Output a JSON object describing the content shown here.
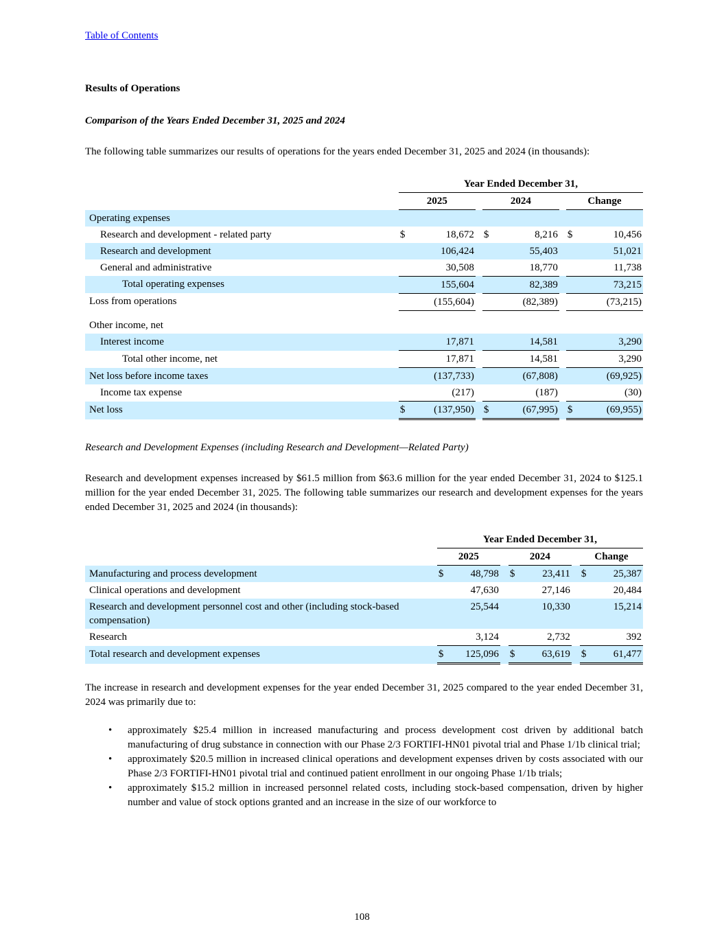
{
  "page": {
    "toc_link": "Table of Contents",
    "page_number": "108"
  },
  "colors": {
    "row_shading": "#cceeff",
    "link": "#0000ee"
  },
  "headings": {
    "results": "Results of Operations",
    "comparison": "Comparison of the Years Ended December 31, 2025 and 2024",
    "rd": "Research and Development Expenses (including Research and Development—Related Party)"
  },
  "paragraphs": {
    "intro": "The following table summarizes our results of operations for the years ended December 31, 2025 and 2024 (in thousands):",
    "rd_summary": "Research and development expenses increased by $61.5 million from $63.6 million for the year ended December 31, 2024 to $125.1 million for the year ended December 31, 2025. The following table summarizes our research and development expenses for the years ended December 31, 2025 and 2024 (in thousands):",
    "increase_intro": "The increase in research and development expenses for the year ended December 31, 2025 compared to the year ended December 31, 2024 was primarily due to:"
  },
  "bullets": [
    "approximately $25.4 million in increased manufacturing and process development cost driven by additional batch manufacturing of drug substance in connection with our Phase 2/3 FORTIFI-HN01 pivotal trial and Phase 1/1b clinical trial;",
    "approximately $20.5 million in increased clinical operations and development expenses driven by costs associated with our Phase 2/3 FORTIFI-HN01 pivotal trial and continued patient enrollment in our ongoing Phase 1/1b trials;",
    "approximately $15.2 million in increased personnel related costs, including stock-based compensation, driven by higher number and value of stock options granted and an increase in the size of our workforce to"
  ],
  "table1": {
    "currency_symbol": "$",
    "header": {
      "span_label": "Year Ended December 31,",
      "col_labels": [
        "2025",
        "2024",
        "Change"
      ]
    },
    "rows": [
      {
        "label": "Operating expenses",
        "indent": 0,
        "shaded": true
      },
      {
        "label": "Research and development - related party",
        "indent": 1,
        "dollar": true,
        "values": [
          "18,672",
          "8,216",
          "10,456"
        ]
      },
      {
        "label": "Research and development",
        "indent": 1,
        "shaded": true,
        "values": [
          "106,424",
          "55,403",
          "51,021"
        ]
      },
      {
        "label": "General and administrative",
        "indent": 1,
        "values": [
          "30,508",
          "18,770",
          "11,738"
        ]
      },
      {
        "label": "Total operating expenses",
        "indent": 2,
        "shaded": true,
        "values": [
          "155,604",
          "82,389",
          "73,215"
        ],
        "bt": true
      },
      {
        "label": "Loss from operations",
        "indent": 0,
        "values": [
          "(155,604)",
          "(82,389)",
          "(73,215)"
        ],
        "bt": true,
        "bb": "single"
      },
      {
        "spacer": true
      },
      {
        "label": "Other income, net",
        "indent": 0
      },
      {
        "label": "Interest income",
        "indent": 1,
        "shaded": true,
        "values": [
          "17,871",
          "14,581",
          "3,290"
        ]
      },
      {
        "label": "Total other income, net",
        "indent": 2,
        "values": [
          "17,871",
          "14,581",
          "3,290"
        ],
        "bt": true
      },
      {
        "label": "Net loss before income taxes",
        "indent": 0,
        "shaded": true,
        "values": [
          "(137,733)",
          "(67,808)",
          "(69,925)"
        ],
        "bt": true
      },
      {
        "label": "Income tax expense",
        "indent": 1,
        "values": [
          "(217)",
          "(187)",
          "(30)"
        ]
      },
      {
        "label": "Net loss",
        "indent": 0,
        "shaded": true,
        "dollar": true,
        "values": [
          "(137,950)",
          "(67,995)",
          "(69,955)"
        ],
        "bt": true,
        "bb": "double"
      }
    ]
  },
  "table2": {
    "currency_symbol": "$",
    "header": {
      "span_label": "Year Ended December 31,",
      "col_labels": [
        "2025",
        "2024",
        "Change"
      ]
    },
    "rows": [
      {
        "label": "Manufacturing and process development",
        "indent": 0,
        "shaded": true,
        "dollar": true,
        "values": [
          "48,798",
          "23,411",
          "25,387"
        ]
      },
      {
        "label": "Clinical operations and development",
        "indent": 0,
        "values": [
          "47,630",
          "27,146",
          "20,484"
        ]
      },
      {
        "label": "Research and development personnel cost and other (including stock-based compensation)",
        "indent": 0,
        "shaded": true,
        "values": [
          "25,544",
          "10,330",
          "15,214"
        ]
      },
      {
        "label": "Research",
        "indent": 0,
        "values": [
          "3,124",
          "2,732",
          "392"
        ]
      },
      {
        "label": "Total research and development expenses",
        "indent": 0,
        "shaded": true,
        "dollar": true,
        "values": [
          "125,096",
          "63,619",
          "61,477"
        ],
        "bt": true,
        "bb": "double"
      }
    ]
  }
}
